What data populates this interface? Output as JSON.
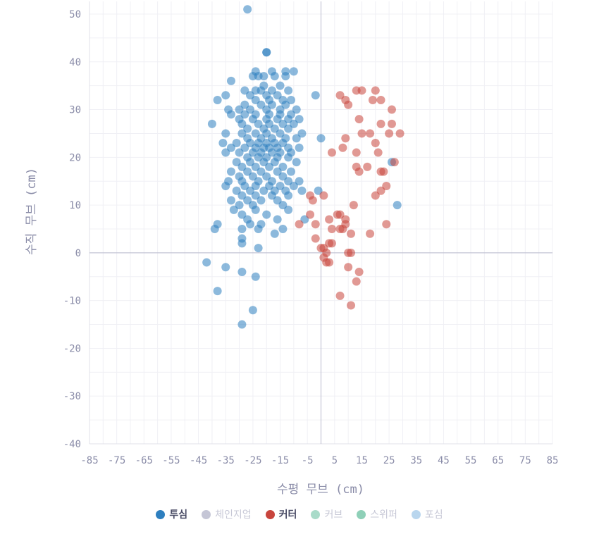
{
  "chart_data": {
    "type": "scatter",
    "title": "",
    "xlabel": "수평 무브 (cm)",
    "ylabel": "수직 무브 (cm)",
    "xlim": [
      -85,
      85
    ],
    "ylim": [
      -40,
      55
    ],
    "x_ticks": [
      -85,
      -75,
      -65,
      -55,
      -45,
      -35,
      -25,
      -15,
      -5,
      5,
      15,
      25,
      35,
      45,
      55,
      65,
      75,
      85
    ],
    "y_ticks": [
      -40,
      -30,
      -20,
      -10,
      0,
      10,
      20,
      30,
      40,
      50
    ],
    "grid": true,
    "legend_position": "bottom",
    "series": [
      {
        "name": "투심",
        "color": "#2e7fbf",
        "visible": true,
        "points": [
          [
            -27,
            51
          ],
          [
            -20,
            42
          ],
          [
            -20,
            42
          ],
          [
            -24,
            38
          ],
          [
            -18,
            38
          ],
          [
            -13,
            38
          ],
          [
            -10,
            38
          ],
          [
            -25,
            37
          ],
          [
            -23,
            37
          ],
          [
            -21,
            37
          ],
          [
            -17,
            37
          ],
          [
            -13,
            37
          ],
          [
            -33,
            36
          ],
          [
            -15,
            35
          ],
          [
            -21,
            35
          ],
          [
            -28,
            34
          ],
          [
            -24,
            34
          ],
          [
            -22,
            34
          ],
          [
            -18,
            34
          ],
          [
            -12,
            34
          ],
          [
            -35,
            33
          ],
          [
            -26,
            33
          ],
          [
            -20,
            33
          ],
          [
            -16,
            33
          ],
          [
            -2,
            33
          ],
          [
            -38,
            32
          ],
          [
            -24,
            32
          ],
          [
            -19,
            32
          ],
          [
            -14,
            32
          ],
          [
            -11,
            32
          ],
          [
            -28,
            31
          ],
          [
            -22,
            31
          ],
          [
            -18,
            31
          ],
          [
            -13,
            31
          ],
          [
            -9,
            30
          ],
          [
            -34,
            30
          ],
          [
            -30,
            30
          ],
          [
            -26,
            30
          ],
          [
            -20,
            30
          ],
          [
            -15,
            30
          ],
          [
            -33,
            29
          ],
          [
            -28,
            29
          ],
          [
            -24,
            29
          ],
          [
            -19,
            29
          ],
          [
            -15,
            29
          ],
          [
            -11,
            29
          ],
          [
            -30,
            28
          ],
          [
            -25,
            28
          ],
          [
            -20,
            28
          ],
          [
            -16,
            28
          ],
          [
            -12,
            28
          ],
          [
            -8,
            28
          ],
          [
            -40,
            27
          ],
          [
            -29,
            27
          ],
          [
            -23,
            27
          ],
          [
            -19,
            27
          ],
          [
            -14,
            27
          ],
          [
            -10,
            27
          ],
          [
            -27,
            26
          ],
          [
            -21,
            26
          ],
          [
            -17,
            26
          ],
          [
            -12,
            26
          ],
          [
            -35,
            25
          ],
          [
            -29,
            25
          ],
          [
            -24,
            25
          ],
          [
            -20,
            25
          ],
          [
            -15,
            25
          ],
          [
            -7,
            25
          ],
          [
            -27,
            24
          ],
          [
            -22,
            24
          ],
          [
            -18,
            24
          ],
          [
            -13,
            24
          ],
          [
            -9,
            24
          ],
          [
            0,
            24
          ],
          [
            -36,
            23
          ],
          [
            -31,
            23
          ],
          [
            -26,
            23
          ],
          [
            -23,
            23
          ],
          [
            -20,
            23
          ],
          [
            -17,
            23
          ],
          [
            -14,
            23
          ],
          [
            -33,
            22
          ],
          [
            -28,
            22
          ],
          [
            -24,
            22
          ],
          [
            -21,
            22
          ],
          [
            -19,
            22
          ],
          [
            -16,
            22
          ],
          [
            -12,
            22
          ],
          [
            -8,
            22
          ],
          [
            -35,
            21
          ],
          [
            -30,
            21
          ],
          [
            -25,
            21
          ],
          [
            -22,
            21
          ],
          [
            -18,
            21
          ],
          [
            -15,
            21
          ],
          [
            -11,
            21
          ],
          [
            -27,
            20
          ],
          [
            -23,
            20
          ],
          [
            -20,
            20
          ],
          [
            -16,
            20
          ],
          [
            -12,
            20
          ],
          [
            -31,
            19
          ],
          [
            -26,
            19
          ],
          [
            -21,
            19
          ],
          [
            -17,
            19
          ],
          [
            -9,
            19
          ],
          [
            -29,
            18
          ],
          [
            -24,
            18
          ],
          [
            -19,
            18
          ],
          [
            -14,
            18
          ],
          [
            -33,
            17
          ],
          [
            -27,
            17
          ],
          [
            -22,
            17
          ],
          [
            -16,
            17
          ],
          [
            -11,
            17
          ],
          [
            -30,
            16
          ],
          [
            -25,
            16
          ],
          [
            -20,
            16
          ],
          [
            -14,
            16
          ],
          [
            -34,
            15
          ],
          [
            -29,
            15
          ],
          [
            -23,
            15
          ],
          [
            -18,
            15
          ],
          [
            -12,
            15
          ],
          [
            -8,
            15
          ],
          [
            -35,
            14
          ],
          [
            -28,
            14
          ],
          [
            -24,
            14
          ],
          [
            -19,
            14
          ],
          [
            -15,
            14
          ],
          [
            -10,
            14
          ],
          [
            -31,
            13
          ],
          [
            -26,
            13
          ],
          [
            -21,
            13
          ],
          [
            -17,
            13
          ],
          [
            -13,
            13
          ],
          [
            -7,
            13
          ],
          [
            -1,
            13
          ],
          [
            -29,
            12
          ],
          [
            -24,
            12
          ],
          [
            -18,
            12
          ],
          [
            -12,
            12
          ],
          [
            -33,
            11
          ],
          [
            -27,
            11
          ],
          [
            -22,
            11
          ],
          [
            -16,
            11
          ],
          [
            -30,
            10
          ],
          [
            -25,
            10
          ],
          [
            -14,
            10
          ],
          [
            -32,
            9
          ],
          [
            -24,
            9
          ],
          [
            -12,
            9
          ],
          [
            -29,
            8
          ],
          [
            -20,
            8
          ],
          [
            -6,
            7
          ],
          [
            -27,
            7
          ],
          [
            -16,
            7
          ],
          [
            -38,
            6
          ],
          [
            -26,
            6
          ],
          [
            -22,
            6
          ],
          [
            -39,
            5
          ],
          [
            -29,
            5
          ],
          [
            -23,
            5
          ],
          [
            -14,
            5
          ],
          [
            -17,
            4
          ],
          [
            -29,
            3
          ],
          [
            -29,
            2
          ],
          [
            -23,
            1
          ],
          [
            -42,
            -2
          ],
          [
            -29,
            -4
          ],
          [
            -24,
            -5
          ],
          [
            -35,
            -3
          ],
          [
            -38,
            -8
          ],
          [
            -25,
            -12
          ],
          [
            -29,
            -15
          ],
          [
            26,
            19
          ],
          [
            28,
            10
          ]
        ]
      },
      {
        "name": "체인지업",
        "color": "#c5c6d6",
        "visible": false,
        "points": []
      },
      {
        "name": "커터",
        "color": "#c8453d",
        "visible": true,
        "points": [
          [
            13,
            34
          ],
          [
            15,
            34
          ],
          [
            20,
            34
          ],
          [
            7,
            33
          ],
          [
            22,
            32
          ],
          [
            9,
            32
          ],
          [
            10,
            31
          ],
          [
            19,
            32
          ],
          [
            26,
            30
          ],
          [
            14,
            28
          ],
          [
            22,
            27
          ],
          [
            26,
            27
          ],
          [
            15,
            25
          ],
          [
            18,
            25
          ],
          [
            25,
            25
          ],
          [
            29,
            25
          ],
          [
            9,
            24
          ],
          [
            20,
            23
          ],
          [
            8,
            22
          ],
          [
            4,
            21
          ],
          [
            13,
            21
          ],
          [
            21,
            21
          ],
          [
            13,
            18
          ],
          [
            17,
            18
          ],
          [
            22,
            17
          ],
          [
            23,
            17
          ],
          [
            14,
            17
          ],
          [
            27,
            19
          ],
          [
            24,
            14
          ],
          [
            20,
            12
          ],
          [
            22,
            13
          ],
          [
            -4,
            12
          ],
          [
            1,
            12
          ],
          [
            -3,
            11
          ],
          [
            12,
            10
          ],
          [
            9,
            7
          ],
          [
            -4,
            8
          ],
          [
            3,
            7
          ],
          [
            6,
            8
          ],
          [
            7,
            8
          ],
          [
            -8,
            6
          ],
          [
            -2,
            6
          ],
          [
            9,
            6
          ],
          [
            4,
            5
          ],
          [
            8,
            5
          ],
          [
            7,
            5
          ],
          [
            18,
            4
          ],
          [
            11,
            4
          ],
          [
            24,
            6
          ],
          [
            -2,
            3
          ],
          [
            4,
            2
          ],
          [
            3,
            2
          ],
          [
            0,
            1
          ],
          [
            1,
            1
          ],
          [
            2,
            0
          ],
          [
            10,
            0
          ],
          [
            11,
            0
          ],
          [
            1,
            -1
          ],
          [
            2,
            -2
          ],
          [
            3,
            -2
          ],
          [
            10,
            -3
          ],
          [
            14,
            -4
          ],
          [
            13,
            -6
          ],
          [
            7,
            -9
          ],
          [
            11,
            -11
          ]
        ]
      },
      {
        "name": "커브",
        "color": "#a9dbc9",
        "visible": false,
        "points": []
      },
      {
        "name": "스위퍼",
        "color": "#8fd0b8",
        "visible": false,
        "points": []
      },
      {
        "name": "포심",
        "color": "#b9d6ee",
        "visible": false,
        "points": []
      }
    ]
  }
}
